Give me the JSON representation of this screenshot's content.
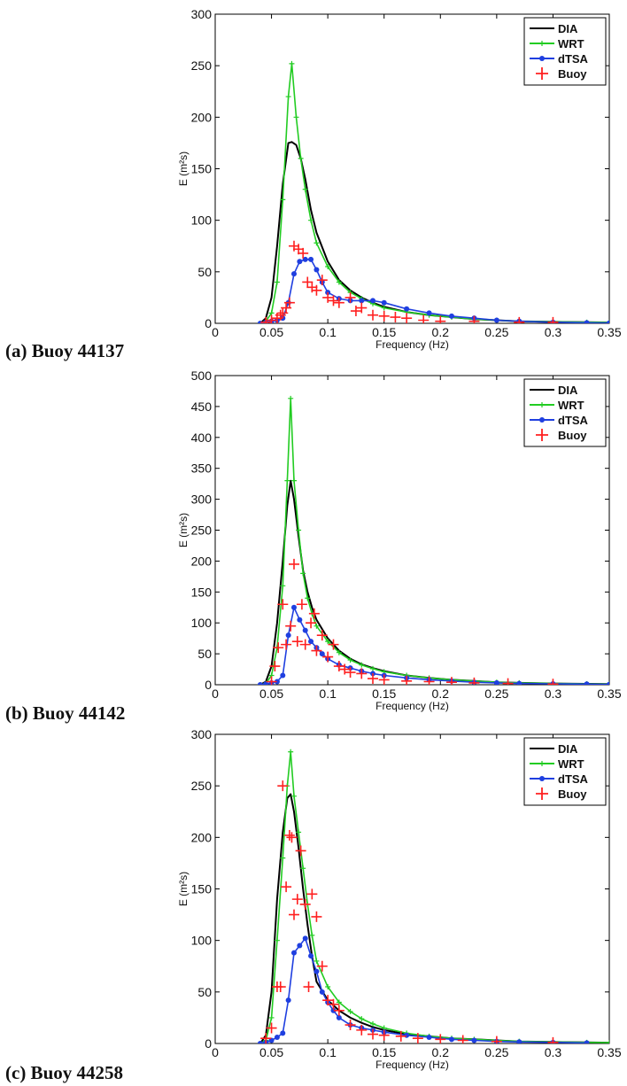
{
  "chart_data": [
    {
      "type": "line",
      "caption": "(a) Buoy 44137",
      "xlabel": "Frequency (Hz)",
      "ylabel": "E (m²s)",
      "xlim": [
        0,
        0.35
      ],
      "ylim": [
        0,
        300
      ],
      "xticks": [
        "0",
        "0.05",
        "0.1",
        "0.15",
        "0.2",
        "0.25",
        "0.3",
        "0.35"
      ],
      "yticks": [
        "0",
        "50",
        "100",
        "150",
        "200",
        "250",
        "300"
      ],
      "legend_position": "top-right",
      "grid": false,
      "series": [
        {
          "name": "DIA",
          "color": "#000000",
          "marker": "none",
          "x": [
            0.04,
            0.045,
            0.05,
            0.055,
            0.06,
            0.065,
            0.068,
            0.072,
            0.076,
            0.08,
            0.085,
            0.09,
            0.1,
            0.11,
            0.12,
            0.13,
            0.14,
            0.15,
            0.17,
            0.19,
            0.21,
            0.23,
            0.25,
            0.27,
            0.3,
            0.33,
            0.35
          ],
          "y": [
            0,
            5,
            25,
            75,
            135,
            175,
            176,
            173,
            160,
            140,
            110,
            88,
            60,
            42,
            32,
            25,
            20,
            16,
            11,
            8,
            6,
            4,
            3,
            2,
            1.5,
            1,
            0.8
          ]
        },
        {
          "name": "WRT",
          "color": "#22cc22",
          "marker": "plus",
          "x": [
            0.04,
            0.045,
            0.05,
            0.055,
            0.06,
            0.065,
            0.068,
            0.072,
            0.076,
            0.08,
            0.085,
            0.09,
            0.1,
            0.11,
            0.12,
            0.13,
            0.14,
            0.15,
            0.17,
            0.19,
            0.21,
            0.23,
            0.25,
            0.27,
            0.3,
            0.33,
            0.35
          ],
          "y": [
            0,
            2,
            10,
            40,
            120,
            220,
            252,
            200,
            160,
            130,
            100,
            78,
            55,
            40,
            30,
            24,
            19,
            15,
            11,
            8,
            6,
            4,
            3,
            2,
            1.5,
            1,
            0.8
          ]
        },
        {
          "name": "dTSA",
          "color": "#1f3fe0",
          "marker": "dot",
          "x": [
            0.04,
            0.045,
            0.05,
            0.055,
            0.06,
            0.065,
            0.07,
            0.075,
            0.08,
            0.085,
            0.09,
            0.095,
            0.1,
            0.11,
            0.12,
            0.13,
            0.14,
            0.15,
            0.17,
            0.19,
            0.21,
            0.23,
            0.25,
            0.27,
            0.3,
            0.33,
            0.35
          ],
          "y": [
            0,
            1,
            2,
            3,
            5,
            20,
            48,
            60,
            62,
            62,
            52,
            40,
            30,
            24,
            22,
            22,
            22,
            20,
            14,
            10,
            7,
            5,
            3,
            2,
            1,
            0.5,
            0.3
          ]
        },
        {
          "name": "Buoy",
          "color": "#ff2020",
          "marker": "cross",
          "x": [
            0.045,
            0.05,
            0.055,
            0.058,
            0.06,
            0.063,
            0.066,
            0.07,
            0.074,
            0.078,
            0.082,
            0.086,
            0.09,
            0.095,
            0.1,
            0.105,
            0.11,
            0.12,
            0.125,
            0.13,
            0.14,
            0.15,
            0.16,
            0.17,
            0.185,
            0.2,
            0.23,
            0.27,
            0.3
          ],
          "y": [
            1,
            3,
            5,
            8,
            10,
            15,
            20,
            75,
            72,
            68,
            40,
            35,
            32,
            42,
            25,
            22,
            20,
            25,
            12,
            15,
            8,
            7,
            6,
            5,
            3,
            2,
            2,
            1,
            1
          ]
        }
      ]
    },
    {
      "type": "line",
      "caption": "(b) Buoy 44142",
      "xlabel": "Frequency (Hz)",
      "ylabel": "E (m²s)",
      "xlim": [
        0,
        0.35
      ],
      "ylim": [
        0,
        500
      ],
      "xticks": [
        "0",
        "0.05",
        "0.1",
        "0.15",
        "0.2",
        "0.25",
        "0.3",
        "0.35"
      ],
      "yticks": [
        "0",
        "50",
        "100",
        "150",
        "200",
        "250",
        "300",
        "350",
        "400",
        "450",
        "500"
      ],
      "legend_position": "top-right",
      "grid": false,
      "series": [
        {
          "name": "DIA",
          "color": "#000000",
          "marker": "none",
          "x": [
            0.04,
            0.045,
            0.05,
            0.055,
            0.06,
            0.064,
            0.067,
            0.07,
            0.074,
            0.078,
            0.082,
            0.086,
            0.09,
            0.1,
            0.11,
            0.12,
            0.13,
            0.14,
            0.15,
            0.17,
            0.19,
            0.21,
            0.23,
            0.25,
            0.27,
            0.3,
            0.33,
            0.35
          ],
          "y": [
            0,
            5,
            30,
            100,
            200,
            290,
            330,
            300,
            240,
            185,
            150,
            125,
            105,
            75,
            55,
            42,
            33,
            27,
            22,
            15,
            11,
            8,
            6,
            4,
            3,
            2,
            1.5,
            1
          ]
        },
        {
          "name": "WRT",
          "color": "#22cc22",
          "marker": "plus",
          "x": [
            0.04,
            0.045,
            0.05,
            0.055,
            0.06,
            0.064,
            0.067,
            0.07,
            0.074,
            0.078,
            0.082,
            0.086,
            0.09,
            0.1,
            0.11,
            0.12,
            0.13,
            0.14,
            0.15,
            0.17,
            0.19,
            0.21,
            0.23,
            0.25,
            0.27,
            0.3,
            0.33,
            0.35
          ],
          "y": [
            0,
            2,
            15,
            60,
            160,
            330,
            463,
            330,
            250,
            180,
            140,
            115,
            95,
            70,
            52,
            40,
            32,
            26,
            21,
            15,
            11,
            8,
            6,
            4,
            3,
            2,
            1.5,
            1
          ]
        },
        {
          "name": "dTSA",
          "color": "#1f3fe0",
          "marker": "dot",
          "x": [
            0.04,
            0.045,
            0.05,
            0.055,
            0.06,
            0.065,
            0.07,
            0.075,
            0.08,
            0.085,
            0.09,
            0.095,
            0.1,
            0.11,
            0.12,
            0.13,
            0.14,
            0.15,
            0.17,
            0.19,
            0.21,
            0.23,
            0.25,
            0.27,
            0.3,
            0.33,
            0.35
          ],
          "y": [
            0,
            1,
            3,
            5,
            15,
            80,
            125,
            105,
            88,
            70,
            60,
            50,
            42,
            32,
            27,
            22,
            18,
            15,
            11,
            8,
            6,
            4,
            3,
            2,
            1.5,
            1,
            0.5
          ]
        },
        {
          "name": "Buoy",
          "color": "#ff2020",
          "marker": "cross",
          "x": [
            0.05,
            0.053,
            0.056,
            0.06,
            0.063,
            0.067,
            0.07,
            0.073,
            0.077,
            0.08,
            0.085,
            0.088,
            0.09,
            0.095,
            0.1,
            0.105,
            0.11,
            0.115,
            0.12,
            0.13,
            0.14,
            0.15,
            0.17,
            0.19,
            0.21,
            0.23,
            0.26,
            0.3
          ],
          "y": [
            5,
            30,
            60,
            130,
            65,
            95,
            195,
            70,
            130,
            65,
            100,
            115,
            55,
            80,
            45,
            65,
            30,
            25,
            20,
            18,
            10,
            8,
            6,
            5,
            4,
            3,
            2,
            1
          ]
        }
      ]
    },
    {
      "type": "line",
      "caption": "(c) Buoy 44258",
      "xlabel": "Frequency (Hz)",
      "ylabel": "E (m²s)",
      "xlim": [
        0,
        0.35
      ],
      "ylim": [
        0,
        300
      ],
      "xticks": [
        "0",
        "0.05",
        "0.1",
        "0.15",
        "0.2",
        "0.25",
        "0.3",
        "0.35"
      ],
      "yticks": [
        "0",
        "50",
        "100",
        "150",
        "200",
        "250",
        "300"
      ],
      "legend_position": "top-right",
      "grid": false,
      "series": [
        {
          "name": "DIA",
          "color": "#000000",
          "marker": "none",
          "x": [
            0.04,
            0.045,
            0.05,
            0.055,
            0.06,
            0.064,
            0.067,
            0.07,
            0.074,
            0.078,
            0.082,
            0.086,
            0.09,
            0.1,
            0.11,
            0.12,
            0.13,
            0.14,
            0.15,
            0.17,
            0.19,
            0.21,
            0.23,
            0.25,
            0.27,
            0.3,
            0.33,
            0.35
          ],
          "y": [
            0,
            8,
            50,
            140,
            205,
            238,
            242,
            225,
            190,
            150,
            115,
            85,
            60,
            42,
            32,
            25,
            20,
            16,
            13,
            9,
            7,
            5,
            4,
            3,
            2,
            1.5,
            1,
            0.8
          ]
        },
        {
          "name": "WRT",
          "color": "#22cc22",
          "marker": "plus",
          "x": [
            0.04,
            0.045,
            0.05,
            0.055,
            0.06,
            0.064,
            0.067,
            0.07,
            0.074,
            0.078,
            0.082,
            0.086,
            0.09,
            0.1,
            0.11,
            0.12,
            0.13,
            0.14,
            0.15,
            0.17,
            0.19,
            0.21,
            0.23,
            0.25,
            0.27,
            0.3,
            0.33,
            0.35
          ],
          "y": [
            0,
            3,
            25,
            100,
            180,
            250,
            283,
            240,
            205,
            170,
            135,
            105,
            80,
            55,
            40,
            31,
            24,
            19,
            15,
            10,
            7,
            5,
            4,
            3,
            2,
            1.5,
            1,
            0.8
          ]
        },
        {
          "name": "dTSA",
          "color": "#1f3fe0",
          "marker": "dot",
          "x": [
            0.04,
            0.045,
            0.05,
            0.055,
            0.06,
            0.065,
            0.07,
            0.075,
            0.08,
            0.085,
            0.09,
            0.095,
            0.1,
            0.105,
            0.11,
            0.12,
            0.13,
            0.14,
            0.15,
            0.17,
            0.19,
            0.21,
            0.23,
            0.25,
            0.27,
            0.3,
            0.33
          ],
          "y": [
            0,
            1,
            3,
            6,
            10,
            42,
            88,
            95,
            102,
            85,
            70,
            50,
            40,
            32,
            25,
            18,
            15,
            13,
            11,
            8,
            6,
            4,
            3,
            2,
            1.5,
            1,
            0.5
          ]
        },
        {
          "name": "Buoy",
          "color": "#ff2020",
          "marker": "cross",
          "x": [
            0.045,
            0.05,
            0.055,
            0.058,
            0.06,
            0.063,
            0.066,
            0.068,
            0.07,
            0.073,
            0.076,
            0.08,
            0.083,
            0.086,
            0.09,
            0.095,
            0.1,
            0.105,
            0.11,
            0.12,
            0.13,
            0.14,
            0.15,
            0.165,
            0.18,
            0.2,
            0.22,
            0.25,
            0.3
          ],
          "y": [
            5,
            15,
            55,
            55,
            250,
            152,
            202,
            200,
            125,
            140,
            187,
            135,
            55,
            145,
            123,
            75,
            42,
            38,
            32,
            18,
            13,
            9,
            8,
            7,
            5,
            4,
            3,
            2,
            1
          ]
        }
      ]
    }
  ]
}
